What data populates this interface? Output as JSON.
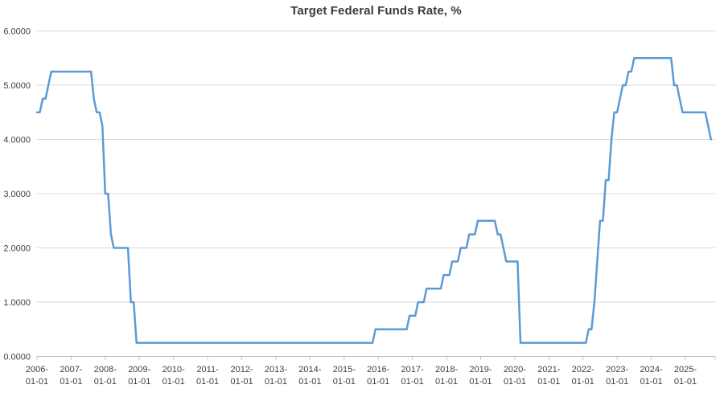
{
  "chart_data": {
    "type": "line",
    "title": "Target Federal Funds Rate, %",
    "xlabel": "",
    "ylabel": "",
    "ylim": [
      0,
      6
    ],
    "y_tick_labels": [
      "0.0000",
      "1.0000",
      "2.0000",
      "3.0000",
      "4.0000",
      "5.0000",
      "6.0000"
    ],
    "x_tick_labels": [
      "2006-01-01",
      "2007-01-01",
      "2008-01-01",
      "2009-01-01",
      "2010-01-01",
      "2011-01-01",
      "2012-01-01",
      "2013-01-01",
      "2014-01-01",
      "2015-01-01",
      "2016-01-01",
      "2017-01-01",
      "2018-01-01",
      "2019-01-01",
      "2020-01-01",
      "2021-01-01",
      "2022-01-01",
      "2023-01-01",
      "2024-01-01",
      "2025-01-01"
    ],
    "grid": "horizontal-only",
    "legend": "none",
    "colors": {
      "line": "#5B9BD5",
      "gridline": "#D9D9D9",
      "axis": "#BFBFBF",
      "labels": "#404040",
      "title": "#3b3b3b",
      "background": "#ffffff"
    },
    "series": [
      {
        "name": "Target Federal Funds Rate (%)",
        "frequency": "monthly",
        "start_month": "2006-01",
        "end_month": "2025-10",
        "values": [
          4.5,
          4.5,
          4.75,
          4.75,
          5.0,
          5.25,
          5.25,
          5.25,
          5.25,
          5.25,
          5.25,
          5.25,
          5.25,
          5.25,
          5.25,
          5.25,
          5.25,
          5.25,
          5.25,
          5.25,
          4.75,
          4.5,
          4.5,
          4.25,
          3.0,
          3.0,
          2.25,
          2.0,
          2.0,
          2.0,
          2.0,
          2.0,
          2.0,
          1.0,
          1.0,
          0.25,
          0.25,
          0.25,
          0.25,
          0.25,
          0.25,
          0.25,
          0.25,
          0.25,
          0.25,
          0.25,
          0.25,
          0.25,
          0.25,
          0.25,
          0.25,
          0.25,
          0.25,
          0.25,
          0.25,
          0.25,
          0.25,
          0.25,
          0.25,
          0.25,
          0.25,
          0.25,
          0.25,
          0.25,
          0.25,
          0.25,
          0.25,
          0.25,
          0.25,
          0.25,
          0.25,
          0.25,
          0.25,
          0.25,
          0.25,
          0.25,
          0.25,
          0.25,
          0.25,
          0.25,
          0.25,
          0.25,
          0.25,
          0.25,
          0.25,
          0.25,
          0.25,
          0.25,
          0.25,
          0.25,
          0.25,
          0.25,
          0.25,
          0.25,
          0.25,
          0.25,
          0.25,
          0.25,
          0.25,
          0.25,
          0.25,
          0.25,
          0.25,
          0.25,
          0.25,
          0.25,
          0.25,
          0.25,
          0.25,
          0.25,
          0.25,
          0.25,
          0.25,
          0.25,
          0.25,
          0.25,
          0.25,
          0.25,
          0.25,
          0.5,
          0.5,
          0.5,
          0.5,
          0.5,
          0.5,
          0.5,
          0.5,
          0.5,
          0.5,
          0.5,
          0.5,
          0.75,
          0.75,
          0.75,
          1.0,
          1.0,
          1.0,
          1.25,
          1.25,
          1.25,
          1.25,
          1.25,
          1.25,
          1.5,
          1.5,
          1.5,
          1.75,
          1.75,
          1.75,
          2.0,
          2.0,
          2.0,
          2.25,
          2.25,
          2.25,
          2.5,
          2.5,
          2.5,
          2.5,
          2.5,
          2.5,
          2.5,
          2.25,
          2.25,
          2.0,
          1.75,
          1.75,
          1.75,
          1.75,
          1.75,
          0.25,
          0.25,
          0.25,
          0.25,
          0.25,
          0.25,
          0.25,
          0.25,
          0.25,
          0.25,
          0.25,
          0.25,
          0.25,
          0.25,
          0.25,
          0.25,
          0.25,
          0.25,
          0.25,
          0.25,
          0.25,
          0.25,
          0.25,
          0.25,
          0.5,
          0.5,
          1.0,
          1.75,
          2.5,
          2.5,
          3.25,
          3.25,
          4.0,
          4.5,
          4.5,
          4.75,
          5.0,
          5.0,
          5.25,
          5.25,
          5.5,
          5.5,
          5.5,
          5.5,
          5.5,
          5.5,
          5.5,
          5.5,
          5.5,
          5.5,
          5.5,
          5.5,
          5.5,
          5.5,
          5.0,
          5.0,
          4.75,
          4.5,
          4.5,
          4.5,
          4.5,
          4.5,
          4.5,
          4.5,
          4.5,
          4.5,
          4.25,
          4.0
        ]
      }
    ]
  }
}
